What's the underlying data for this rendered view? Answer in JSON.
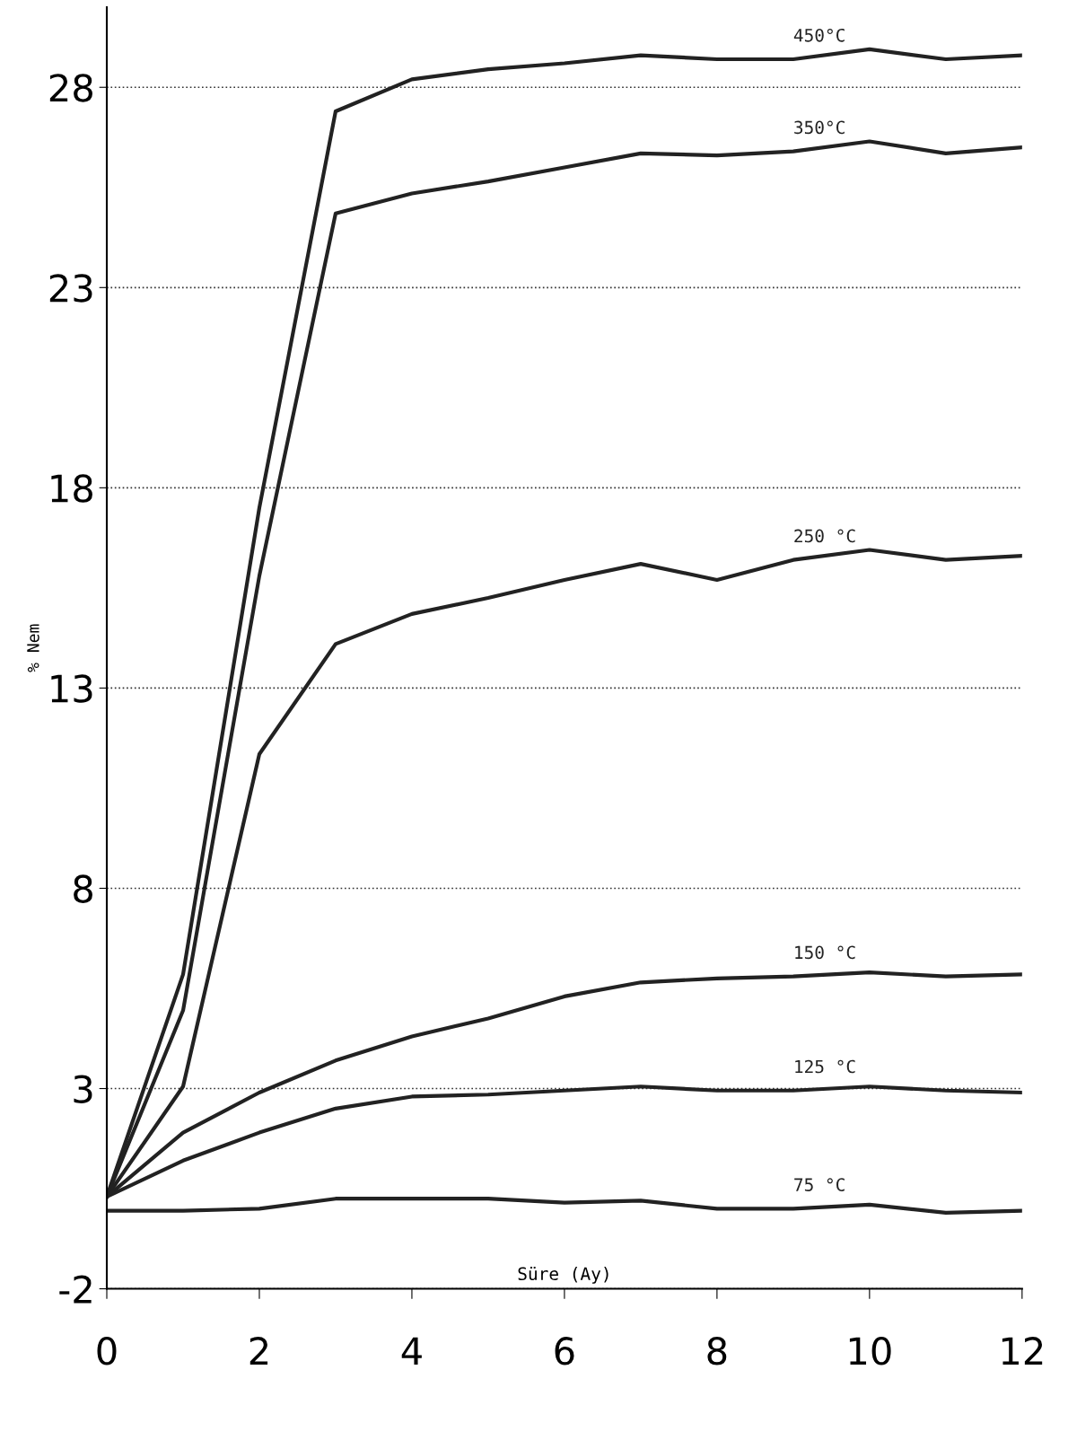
{
  "chart_data": {
    "type": "line",
    "xlabel": "Süre (Ay)",
    "ylabel": "% Nem",
    "x": [
      0,
      1,
      2,
      3,
      4,
      5,
      6,
      7,
      8,
      9,
      10,
      11,
      12
    ],
    "xlim": [
      0,
      12
    ],
    "xticks": [
      0,
      2,
      4,
      6,
      8,
      10,
      12
    ],
    "ylim": [
      -2,
      30
    ],
    "yticks": [
      -2,
      3,
      8,
      13,
      18,
      23,
      28
    ],
    "grid": "y",
    "line_style": "solid",
    "marker": "none",
    "series": [
      {
        "name": "450°C",
        "color": "#222222",
        "values": [
          0.3,
          5.85,
          17.5,
          27.4,
          28.2,
          28.45,
          28.6,
          28.8,
          28.7,
          28.7,
          28.95,
          28.7,
          28.8
        ]
      },
      {
        "name": "350°C",
        "color": "#222222",
        "values": [
          0.3,
          4.95,
          15.8,
          24.85,
          25.35,
          25.65,
          26.0,
          26.35,
          26.3,
          26.4,
          26.65,
          26.35,
          26.5
        ]
      },
      {
        "name": "250 °C",
        "color": "#222222",
        "values": [
          0.3,
          3.05,
          11.35,
          14.1,
          14.85,
          15.25,
          15.7,
          16.1,
          15.7,
          16.2,
          16.45,
          16.2,
          16.3
        ]
      },
      {
        "name": "150 °C",
        "color": "#222222",
        "values": [
          0.3,
          1.9,
          2.9,
          3.7,
          4.3,
          4.75,
          5.3,
          5.65,
          5.75,
          5.8,
          5.9,
          5.8,
          5.85
        ]
      },
      {
        "name": "125 °C",
        "color": "#222222",
        "values": [
          0.3,
          1.2,
          1.9,
          2.5,
          2.8,
          2.85,
          2.95,
          3.05,
          2.95,
          2.95,
          3.05,
          2.95,
          2.9
        ]
      },
      {
        "name": "75 °C",
        "color": "#222222",
        "values": [
          -0.05,
          -0.05,
          0.0,
          0.25,
          0.25,
          0.25,
          0.15,
          0.2,
          0.0,
          0.0,
          0.1,
          -0.1,
          -0.05
        ]
      }
    ]
  }
}
